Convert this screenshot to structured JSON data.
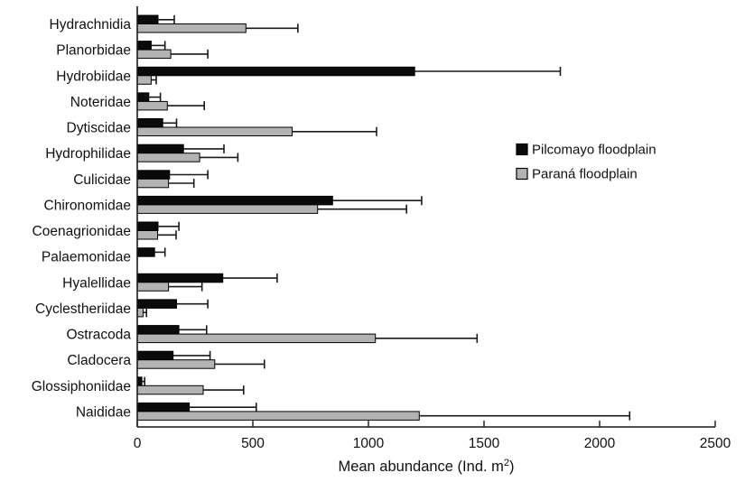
{
  "figure": {
    "background": "#ffffff",
    "text_color": "#111111"
  },
  "chart_data": {
    "type": "bar",
    "orientation": "horizontal",
    "title": "",
    "xlabel": "Mean abundance (Ind. m²)",
    "xlim": [
      0,
      2500
    ],
    "xticks": [
      0,
      500,
      1000,
      1500,
      2000,
      2500
    ],
    "grid": false,
    "tick_direction": "in",
    "legend_position": "middle-right",
    "error_bars": "one-sided positive, cap at outer end",
    "categories": [
      "Hydrachnidia",
      "Planorbidae",
      "Hydrobiidae",
      "Noteridae",
      "Dytiscidae",
      "Hydrophilidae",
      "Culicidae",
      "Chironomidae",
      "Coenagrionidae",
      "Palaemonidae",
      "Hyalellidae",
      "Cyclestheriidae",
      "Ostracoda",
      "Cladocera",
      "Glossiphoniidae",
      "Naididae"
    ],
    "series": [
      {
        "name": "Pilcomayo floodplain",
        "color": "#0a0a0a",
        "values": [
          90,
          60,
          1200,
          50,
          110,
          200,
          140,
          845,
          90,
          75,
          370,
          170,
          180,
          155,
          20,
          225
        ],
        "errors_plus": [
          70,
          60,
          630,
          50,
          60,
          175,
          165,
          385,
          90,
          45,
          235,
          135,
          120,
          160,
          12,
          290
        ]
      },
      {
        "name": "Paraná floodplain",
        "color": "#b3b3b3",
        "values": [
          470,
          145,
          60,
          130,
          670,
          270,
          135,
          780,
          88,
          0,
          135,
          25,
          1030,
          335,
          285,
          1220
        ],
        "errors_plus": [
          225,
          160,
          22,
          160,
          365,
          165,
          110,
          385,
          80,
          0,
          145,
          15,
          440,
          215,
          175,
          910
        ]
      }
    ]
  }
}
